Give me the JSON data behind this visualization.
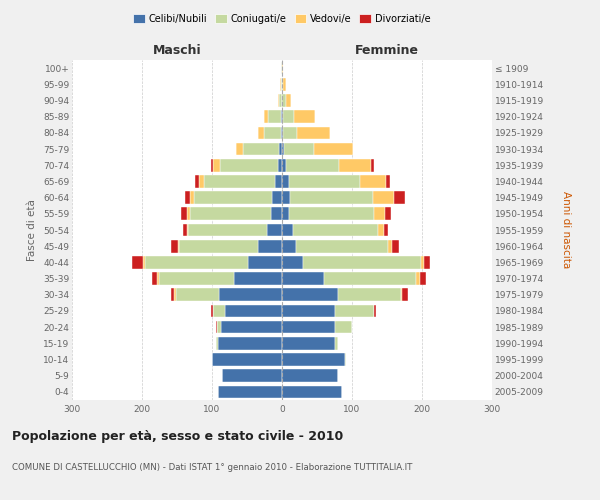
{
  "age_groups": [
    "0-4",
    "5-9",
    "10-14",
    "15-19",
    "20-24",
    "25-29",
    "30-34",
    "35-39",
    "40-44",
    "45-49",
    "50-54",
    "55-59",
    "60-64",
    "65-69",
    "70-74",
    "75-79",
    "80-84",
    "85-89",
    "90-94",
    "95-99",
    "100+"
  ],
  "birth_years": [
    "2005-2009",
    "2000-2004",
    "1995-1999",
    "1990-1994",
    "1985-1989",
    "1980-1984",
    "1975-1979",
    "1970-1974",
    "1965-1969",
    "1960-1964",
    "1955-1959",
    "1950-1954",
    "1945-1949",
    "1940-1944",
    "1935-1939",
    "1930-1934",
    "1925-1929",
    "1920-1924",
    "1915-1919",
    "1910-1914",
    "≤ 1909"
  ],
  "males_celibi": [
    92,
    86,
    100,
    92,
    87,
    82,
    90,
    68,
    48,
    35,
    22,
    16,
    14,
    10,
    6,
    4,
    2,
    2,
    0,
    0,
    0
  ],
  "males_coniugati": [
    0,
    0,
    0,
    2,
    6,
    16,
    62,
    108,
    148,
    112,
    112,
    116,
    112,
    102,
    82,
    52,
    24,
    18,
    4,
    2,
    1
  ],
  "males_vedovi": [
    0,
    0,
    0,
    0,
    0,
    1,
    2,
    2,
    2,
    2,
    2,
    4,
    5,
    6,
    10,
    10,
    8,
    6,
    2,
    1,
    0
  ],
  "males_divorziati": [
    0,
    0,
    0,
    0,
    1,
    2,
    5,
    8,
    16,
    10,
    6,
    8,
    8,
    6,
    4,
    0,
    0,
    0,
    0,
    0,
    0
  ],
  "females_nubili": [
    85,
    80,
    90,
    75,
    75,
    75,
    80,
    60,
    30,
    20,
    15,
    10,
    12,
    10,
    5,
    3,
    2,
    2,
    0,
    0,
    0
  ],
  "females_coniugate": [
    0,
    0,
    2,
    5,
    25,
    56,
    90,
    132,
    168,
    132,
    122,
    122,
    118,
    102,
    76,
    42,
    20,
    15,
    5,
    2,
    0
  ],
  "females_vedove": [
    0,
    0,
    0,
    0,
    0,
    1,
    2,
    5,
    5,
    5,
    8,
    15,
    30,
    36,
    46,
    56,
    46,
    30,
    8,
    3,
    1
  ],
  "females_divorziate": [
    0,
    0,
    0,
    0,
    0,
    2,
    8,
    8,
    8,
    10,
    6,
    8,
    16,
    6,
    4,
    0,
    0,
    0,
    0,
    0,
    0
  ],
  "color_celibi": "#4472aa",
  "color_coniugati": "#c5d9a0",
  "color_vedovi": "#ffc966",
  "color_divorziati": "#cc2020",
  "xlim": 300,
  "xtick_vals": [
    -300,
    -200,
    -100,
    0,
    100,
    200,
    300
  ],
  "title": "Popolazione per età, sesso e stato civile - 2010",
  "subtitle": "COMUNE DI CASTELLUCCHIO (MN) - Dati ISTAT 1° gennaio 2010 - Elaborazione TUTTITALIA.IT",
  "ylabel_left": "Fasce di età",
  "ylabel_right": "Anni di nascita",
  "label_maschi": "Maschi",
  "label_femmine": "Femmine",
  "legend_labels": [
    "Celibi/Nubili",
    "Coniugati/e",
    "Vedovi/e",
    "Divorziati/e"
  ],
  "bg_color": "#f0f0f0",
  "plot_bg": "#ffffff",
  "grid_color": "#cccccc",
  "text_color": "#666666"
}
